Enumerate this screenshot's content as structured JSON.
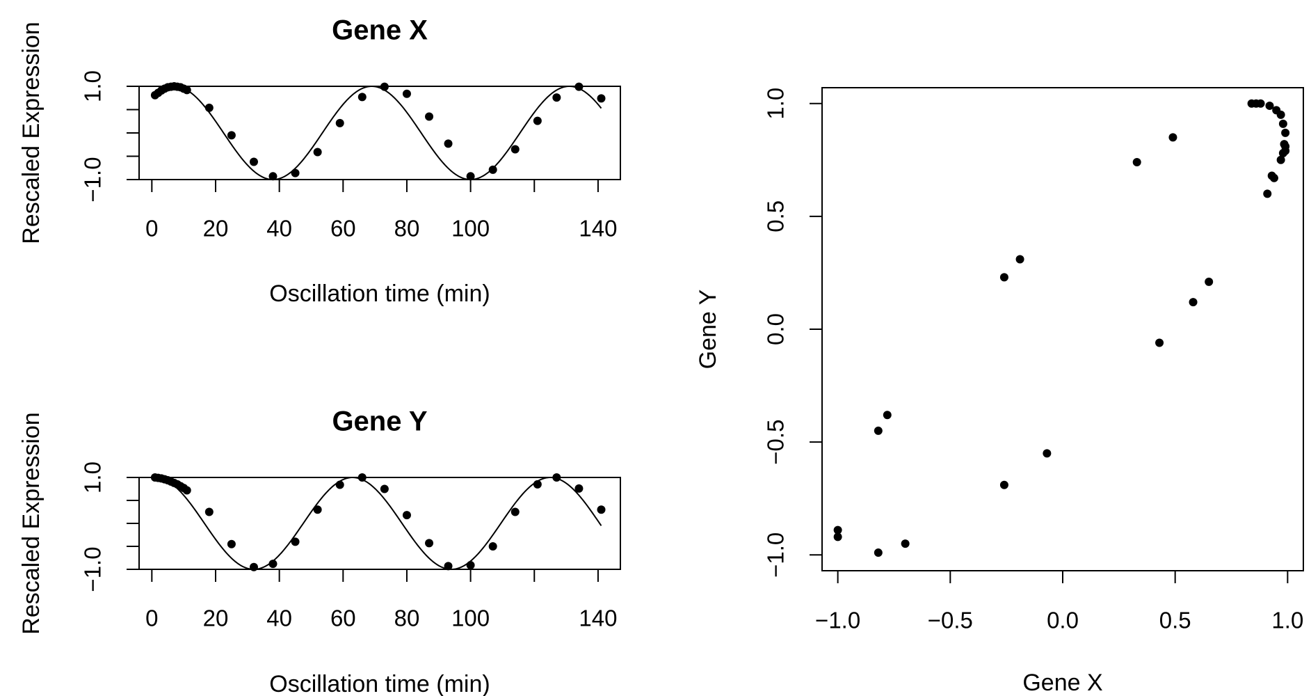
{
  "chart_data": [
    {
      "type": "line",
      "title": "Gene X",
      "xlabel": "Oscillation time (min)",
      "ylabel": "Rescaled Expression",
      "xlim": [
        -4,
        147
      ],
      "ylim": [
        -1.0,
        1.0
      ],
      "xticks": [
        0,
        20,
        40,
        60,
        80,
        100,
        120,
        140
      ],
      "xtick_labels": [
        "0",
        "20",
        "40",
        "60",
        "80",
        "100",
        "",
        "140"
      ],
      "yticks": [
        -1.0,
        -0.5,
        0.0,
        0.5,
        1.0
      ],
      "ytick_labels": [
        "−1.0",
        "",
        "",
        "",
        "1.0"
      ],
      "curve": {
        "function": "cos",
        "amplitude": 1.0,
        "period_min": 62,
        "peak_time_min": 7
      },
      "points": {
        "x": [
          1,
          2,
          3,
          4,
          5,
          6,
          7,
          8,
          9,
          10,
          11,
          18,
          25,
          32,
          38,
          45,
          52,
          59,
          66,
          73,
          80,
          87,
          93,
          100,
          107,
          114,
          121,
          127,
          134,
          141
        ],
        "y": [
          0.81,
          0.86,
          0.91,
          0.95,
          0.98,
          0.99,
          1.0,
          0.99,
          0.98,
          0.95,
          0.92,
          0.54,
          -0.05,
          -0.62,
          -0.93,
          -0.86,
          -0.41,
          0.21,
          0.77,
          0.99,
          0.84,
          0.35,
          -0.23,
          -0.93,
          -0.79,
          -0.35,
          0.26,
          0.76,
          0.99,
          0.74
        ]
      }
    },
    {
      "type": "line",
      "title": "Gene Y",
      "xlabel": "Oscillation time (min)",
      "ylabel": "Rescaled Expression",
      "xlim": [
        -4,
        147
      ],
      "ylim": [
        -1.0,
        1.0
      ],
      "xticks": [
        0,
        20,
        40,
        60,
        80,
        100,
        120,
        140
      ],
      "xtick_labels": [
        "0",
        "20",
        "40",
        "60",
        "80",
        "100",
        "",
        "140"
      ],
      "yticks": [
        -1.0,
        -0.5,
        0.0,
        0.5,
        1.0
      ],
      "ytick_labels": [
        "−1.0",
        "",
        "",
        "",
        "1.0"
      ],
      "curve": {
        "function": "cos",
        "amplitude": 1.0,
        "period_min": 62,
        "peak_time_min": 1
      },
      "points": {
        "x": [
          1,
          2,
          3,
          4,
          5,
          6,
          7,
          8,
          9,
          10,
          11,
          18,
          25,
          32,
          38,
          45,
          52,
          59,
          66,
          73,
          80,
          87,
          93,
          100,
          107,
          114,
          121,
          127,
          134,
          141
        ],
        "y": [
          1.0,
          0.99,
          0.98,
          0.96,
          0.94,
          0.91,
          0.88,
          0.85,
          0.81,
          0.77,
          0.72,
          0.25,
          -0.45,
          -0.95,
          -0.88,
          -0.4,
          0.3,
          0.84,
          1.0,
          0.75,
          0.18,
          -0.43,
          -0.93,
          -0.91,
          -0.5,
          0.25,
          0.85,
          1.0,
          0.76,
          0.3
        ]
      }
    },
    {
      "type": "scatter",
      "title": "",
      "xlabel": "Gene X",
      "ylabel": "Gene Y",
      "xlim": [
        -1.07,
        1.07
      ],
      "ylim": [
        -1.07,
        1.07
      ],
      "xticks": [
        -1.0,
        -0.5,
        0.0,
        0.5,
        1.0
      ],
      "xtick_labels": [
        "−1.0",
        "−0.5",
        "0.0",
        "0.5",
        "1.0"
      ],
      "yticks": [
        -1.0,
        -0.5,
        0.0,
        0.5,
        1.0
      ],
      "ytick_labels": [
        "−1.0",
        "−0.5",
        "0.0",
        "0.5",
        "1.0"
      ],
      "points": {
        "x": [
          0.84,
          0.86,
          0.88,
          0.92,
          0.95,
          0.97,
          0.98,
          0.99,
          0.99,
          0.99,
          0.985,
          0.98,
          0.97,
          0.94,
          0.93,
          0.91,
          -1.0,
          -1.0,
          -0.82,
          -0.7,
          -0.82,
          -0.78,
          -0.26,
          -0.07,
          -0.26,
          -0.19,
          0.33,
          0.49,
          0.43,
          0.58,
          0.65
        ],
        "y": [
          1.0,
          1.0,
          1.0,
          0.99,
          0.97,
          0.95,
          0.91,
          0.87,
          0.81,
          0.79,
          0.82,
          0.78,
          0.75,
          0.67,
          0.68,
          0.6,
          -0.89,
          -0.92,
          -0.99,
          -0.95,
          -0.45,
          -0.38,
          -0.69,
          -0.55,
          0.23,
          0.31,
          0.74,
          0.85,
          -0.06,
          0.12,
          0.21
        ]
      }
    }
  ]
}
